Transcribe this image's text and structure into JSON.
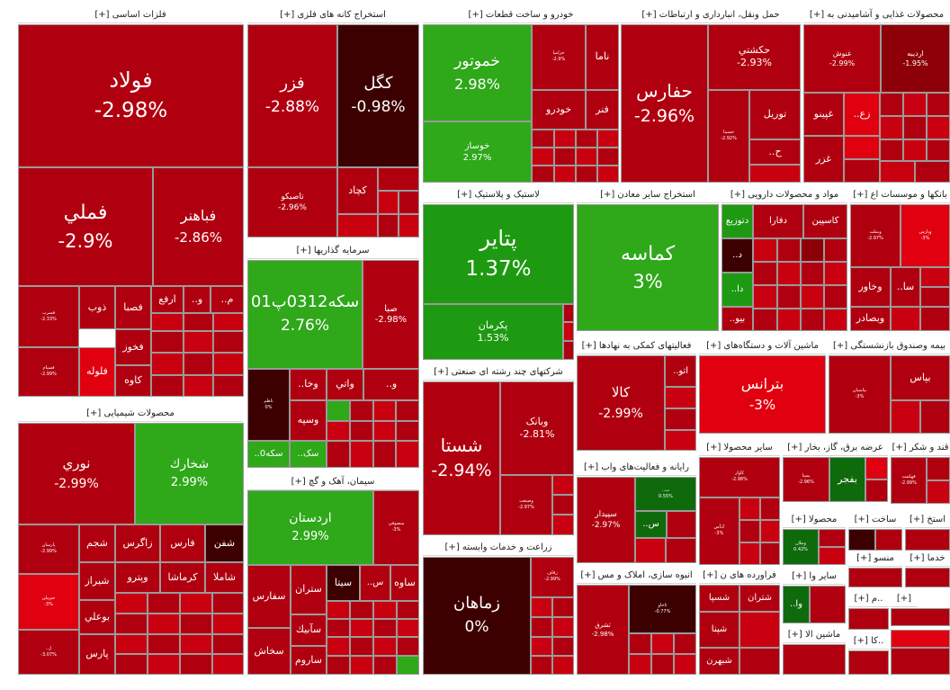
{
  "chart_data": {
    "type": "treemap",
    "unit": "%",
    "sectors": [
      {
        "name": "فلزات اساسی [+]",
        "tiles": [
          {
            "label": "فولاد",
            "change": -2.98
          },
          {
            "label": "فملي",
            "change": -2.9
          },
          {
            "label": "فباهنر",
            "change": -2.86
          },
          {
            "label": "فسرب",
            "change": -2.33
          },
          {
            "label": "ذوب"
          },
          {
            "label": "فصبا"
          },
          {
            "label": "ارفع"
          },
          {
            "label": "..و"
          },
          {
            "label": "..م"
          },
          {
            "label": "فخوز"
          },
          {
            "label": "فلوله"
          },
          {
            "label": "فسپام",
            "change": -2.99
          },
          {
            "label": "کاوه"
          }
        ]
      },
      {
        "name": "استخراج کانه های فلزی [+]",
        "tiles": [
          {
            "label": "فزر",
            "change": -2.88
          },
          {
            "label": "کگل",
            "change": -0.98
          },
          {
            "label": "تاصيكو",
            "change": -2.96
          },
          {
            "label": "کچاد"
          }
        ]
      },
      {
        "name": "خودرو و ساخت قطعات [+]",
        "tiles": [
          {
            "label": "خموتور",
            "change": 2.98
          },
          {
            "label": "خوساز",
            "change": 2.97
          },
          {
            "label": "خزامیا",
            "change": -2.9
          },
          {
            "label": "ناما"
          },
          {
            "label": "خودرو"
          },
          {
            "label": "فنر"
          }
        ]
      },
      {
        "name": "حمل ونقل، انبارداری و ارتباطات [+]",
        "tiles": [
          {
            "label": "حفارس",
            "change": -2.96
          },
          {
            "label": "حكشتي",
            "change": -2.93
          },
          {
            "label": "حسينا",
            "change": -2.92
          },
          {
            "label": "توريل"
          },
          {
            "label": "..ح"
          }
        ]
      },
      {
        "name": "محصولات غذایی و آشامیدنی به [+]",
        "tiles": [
          {
            "label": "غنوش",
            "change": -2.99
          },
          {
            "label": "ارديبه",
            "change": -1.95
          },
          {
            "label": "غپينو"
          },
          {
            "label": "..زع"
          },
          {
            "label": "غزر"
          }
        ]
      },
      {
        "name": "لاستیک و پلاستیک [+]",
        "tiles": [
          {
            "label": "پتاير",
            "change": 1.37
          },
          {
            "label": "پكرمان",
            "change": 1.53
          }
        ]
      },
      {
        "name": "استخراج سایر معادن [+]",
        "tiles": [
          {
            "label": "کماسه",
            "change": 3
          }
        ]
      },
      {
        "name": "مواد و محصولات دارویی [+]",
        "tiles": [
          {
            "label": "دتوزيع"
          },
          {
            "label": "دفارا"
          },
          {
            "label": "کاسپين"
          },
          {
            "label": "..د"
          },
          {
            "label": "..دا"
          },
          {
            "label": "..بیو"
          }
        ]
      },
      {
        "name": "بانکها و موسسات اع [+]",
        "tiles": [
          {
            "label": "وبملت",
            "change": -2.97
          },
          {
            "label": "وپارس",
            "change": -3
          },
          {
            "label": "وخاور"
          },
          {
            "label": "..سا"
          },
          {
            "label": "وبصادر"
          }
        ]
      },
      {
        "name": "سرمایه گذاریها [+]",
        "tiles": [
          {
            "label": "سکه0312پ01",
            "change": 2.76
          },
          {
            "label": "صبا",
            "change": -2.98
          },
          {
            "label": "ناظم",
            "change": 0
          },
          {
            "label": "..وخا"
          },
          {
            "label": "واتي"
          },
          {
            "label": "..و"
          },
          {
            "label": "وسپه"
          },
          {
            "label": "..سکه0"
          },
          {
            "label": "..سک"
          }
        ]
      },
      {
        "name": "شرکتهای چند رشته ای صنعتی [+]",
        "tiles": [
          {
            "label": "شستا",
            "change": -2.94
          },
          {
            "label": "وبانک",
            "change": -2.81
          },
          {
            "label": "وصنعت",
            "change": -2.97
          }
        ]
      },
      {
        "name": "فعالیتهای کمکی به نهادها [+]",
        "tiles": [
          {
            "label": "کالا",
            "change": -2.99
          },
          {
            "label": "..اتو"
          }
        ]
      },
      {
        "name": "ماشین آلات و دستگاه‌های [+]",
        "tiles": [
          {
            "label": "بترانس",
            "change": -3
          }
        ]
      },
      {
        "name": "بیمه وصندوق بازنشستگی [+]",
        "tiles": [
          {
            "label": "بپاسيان",
            "change": -3
          },
          {
            "label": "بپاس"
          }
        ]
      },
      {
        "name": "محصولات شیمیایی [+]",
        "tiles": [
          {
            "label": "نوري",
            "change": -2.99
          },
          {
            "label": "شخارك",
            "change": 2.99
          },
          {
            "label": "پارسان",
            "change": -2.99
          },
          {
            "label": "شجم"
          },
          {
            "label": "زاگرس"
          },
          {
            "label": "فارس"
          },
          {
            "label": "شفن"
          },
          {
            "label": "شیراز"
          },
          {
            "label": "وپترو"
          },
          {
            "label": "کرماشا"
          },
          {
            "label": "شاملا"
          },
          {
            "label": "جم‌پیلن",
            "change": -3
          },
          {
            "label": "بوعلي"
          },
          {
            "label": "پارس"
          },
          {
            "label": "..ل",
            "change": -3.07
          }
        ]
      },
      {
        "name": "سیمان، آهک و گچ [+]",
        "tiles": [
          {
            "label": "اردستان",
            "change": 2.99
          },
          {
            "label": "سصوفي",
            "change": -3
          },
          {
            "label": "سفارس"
          },
          {
            "label": "ستران"
          },
          {
            "label": "..س"
          },
          {
            "label": "سیتا"
          },
          {
            "label": "ساوه"
          },
          {
            "label": "سآبيك"
          },
          {
            "label": "ساروم"
          },
          {
            "label": "سخاش"
          }
        ]
      },
      {
        "name": "زراعت و خدمات وابسته [+]",
        "tiles": [
          {
            "label": "زماهان",
            "change": 0
          },
          {
            "label": "زقاف",
            "change": -2.99
          }
        ]
      },
      {
        "name": "رایانه و فعالیت‌های واب [+]",
        "tiles": [
          {
            "label": "سپيدار",
            "change": -2.97
          },
          {
            "label": "..ب",
            "change": 0.55
          },
          {
            "label": "..س"
          }
        ]
      },
      {
        "name": "انبوه سازی، املاک و مس [+]",
        "tiles": [
          {
            "label": "ثشرق",
            "change": -2.98
          },
          {
            "label": "ثاخاو",
            "change": -0.77
          }
        ]
      },
      {
        "name": "سایر محصولا [+]",
        "tiles": [
          {
            "label": "کاوار",
            "change": -2.98
          },
          {
            "label": "ک‌آس",
            "change": -3
          }
        ]
      },
      {
        "name": "عرضه برق، گاز، بخار [+]",
        "tiles": [
          {
            "label": "بمپنا",
            "change": -2.96
          },
          {
            "label": "بفجر"
          }
        ]
      },
      {
        "name": "قند و شکر [+]",
        "tiles": [
          {
            "label": "قهكمت",
            "change": -2.99
          }
        ]
      },
      {
        "name": "فراورده های ن [+]",
        "tiles": [
          {
            "label": "شسپا"
          },
          {
            "label": "شتران"
          },
          {
            "label": "شپنا"
          },
          {
            "label": "شبهرن"
          }
        ]
      },
      {
        "name": "محصولا [+]",
        "tiles": [
          {
            "label": "وملان",
            "change": 0.42
          }
        ]
      },
      {
        "name": "ساخت [+]",
        "tiles": []
      },
      {
        "name": "استخ [+]",
        "tiles": []
      },
      {
        "name": "سایر وا [+]",
        "tiles": [
          {
            "label": "..وا"
          }
        ]
      },
      {
        "name": "منسو [+]",
        "tiles": []
      },
      {
        "name": "خدما [+]",
        "tiles": []
      },
      {
        "name": "ماشین الا [+]",
        "tiles": []
      },
      {
        "name": "..م [+]",
        "tiles": []
      },
      {
        "name": "..كا [+]",
        "tiles": []
      },
      {
        "name": "[+]",
        "tiles": []
      }
    ]
  },
  "colors": {
    "loss_strong": "#b00010",
    "loss_mid": "#c9000f",
    "loss_light": "#e0000f",
    "loss_dark": "#8d0008",
    "flat": "#3d0000",
    "gain_light": "#2fa81a",
    "gain_mid": "#1e9a12",
    "gain_dark": "#0f6a0c"
  }
}
